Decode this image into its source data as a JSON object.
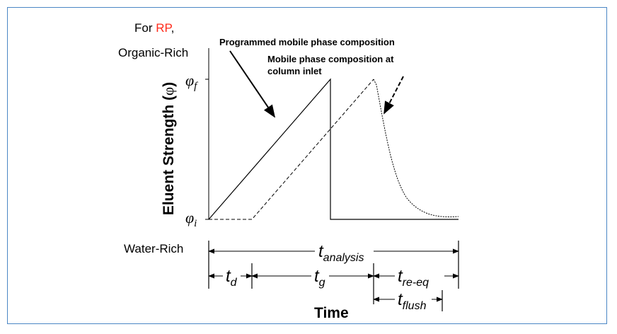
{
  "header": {
    "for_text": "For ",
    "rp_text": "RP",
    "comma": ",",
    "organic_rich": "Organic-Rich",
    "water_rich": "Water-Rich"
  },
  "labels": {
    "programmed": "Programmed mobile phase composition",
    "inlet_line1": "Mobile phase composition at",
    "inlet_line2": "column inlet",
    "y_axis_main": "Eluent Strength (",
    "y_axis_symbol": "φ",
    "y_axis_close": ")",
    "x_axis": "Time"
  },
  "symbols": {
    "phi": "φ",
    "phi_f_sub": "f",
    "phi_i_sub": "i"
  },
  "timings": {
    "t": "t",
    "analysis": "analysis",
    "d": "d",
    "g": "g",
    "re_eq": "re-eq",
    "flush": "flush"
  },
  "colors": {
    "accent_rp": "#ff2a1a",
    "frame": "#4a86c5"
  }
}
